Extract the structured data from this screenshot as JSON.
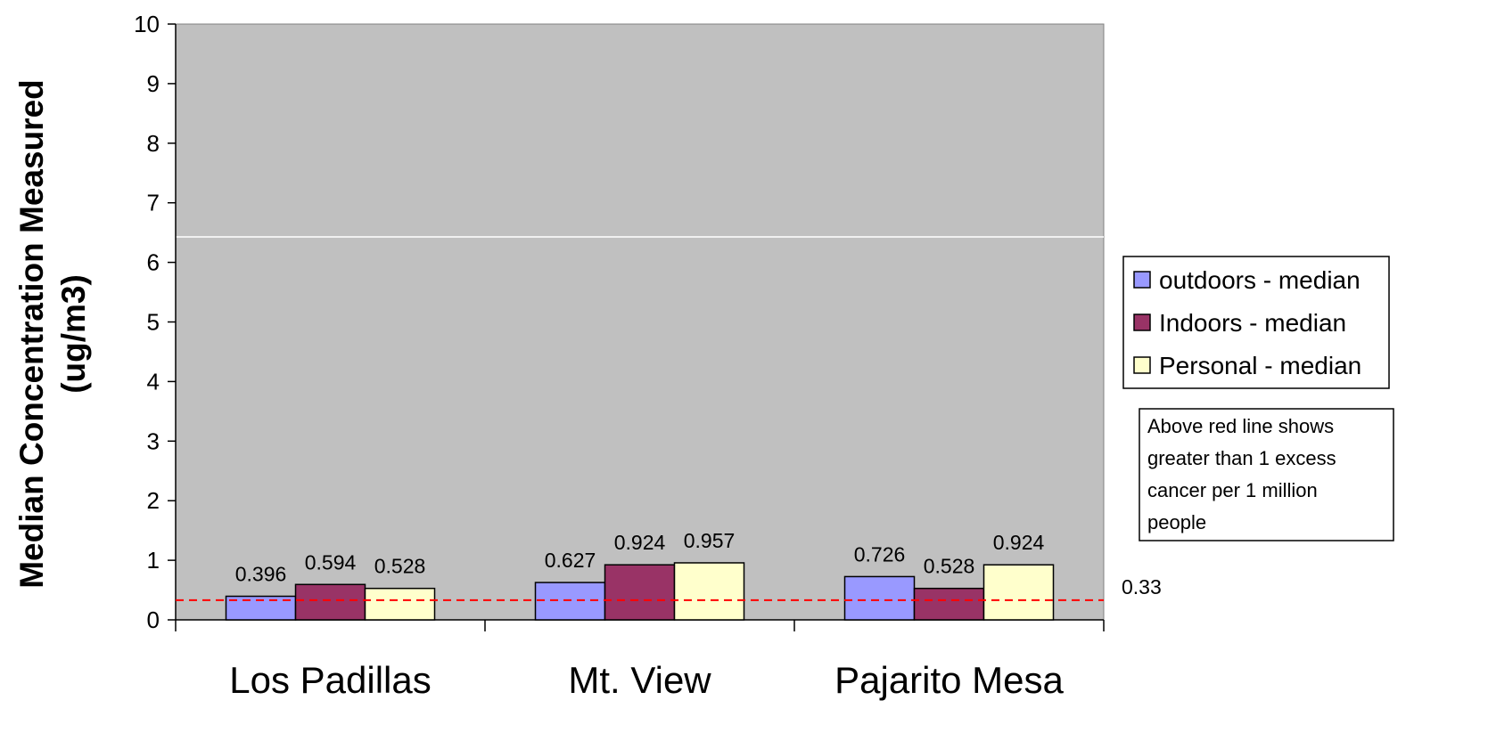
{
  "chart_data": {
    "type": "bar",
    "title": "",
    "ylabel_lines": [
      "Median Concentration Measured",
      "(ug/m3)"
    ],
    "xlabel": "",
    "categories": [
      "Los Padillas",
      "Mt. View",
      "Pajarito Mesa"
    ],
    "series": [
      {
        "name": "outdoors - median",
        "values": [
          0.396,
          0.627,
          0.726
        ],
        "color": "#9999ff"
      },
      {
        "name": "Indoors - median",
        "values": [
          0.594,
          0.924,
          0.528
        ],
        "color": "#993366"
      },
      {
        "name": "Personal - median",
        "values": [
          0.528,
          0.957,
          0.924
        ],
        "color": "#ffffcc"
      }
    ],
    "ylim": [
      0,
      10
    ],
    "yticks": [
      0,
      1,
      2,
      3,
      4,
      5,
      6,
      7,
      8,
      9,
      10
    ],
    "plot_background": "#c0c0c0",
    "grid": false,
    "legend_position": "right",
    "reference_line": {
      "value": 0.33,
      "label": "0.33",
      "color": "#ff0000",
      "style": "dashed"
    },
    "annotation": [
      "Above red line shows",
      "greater than 1 excess",
      "cancer per 1 million",
      "people"
    ]
  }
}
